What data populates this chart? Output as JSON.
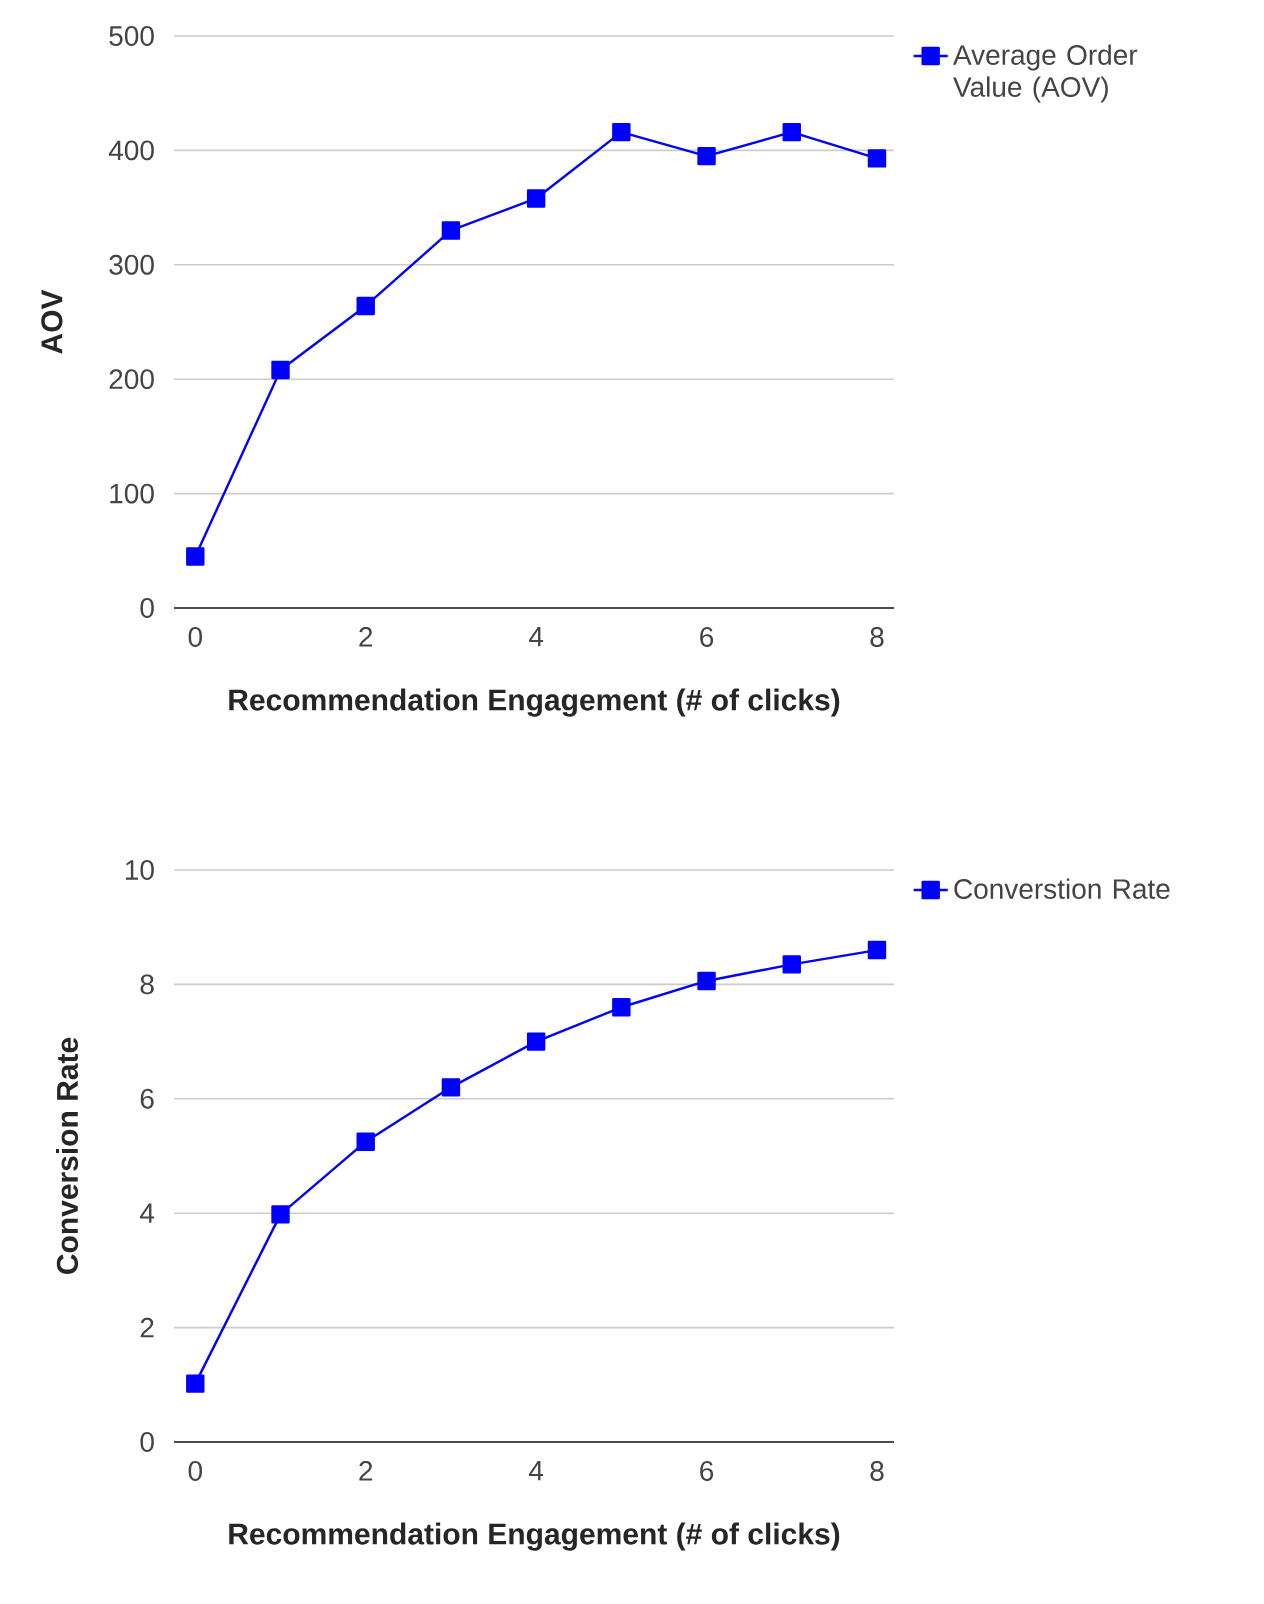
{
  "chart_data": [
    {
      "type": "line",
      "xlabel": "Recommendation Engagement (# of clicks)",
      "ylabel": "AOV",
      "x": [
        0,
        1,
        2,
        3,
        4,
        5,
        6,
        7,
        8
      ],
      "xlim": [
        -0.25,
        8.2
      ],
      "ylim": [
        0,
        500
      ],
      "xticks": [
        0,
        2,
        4,
        6,
        8
      ],
      "yticks": [
        0,
        100,
        200,
        300,
        400,
        500
      ],
      "grid": "y",
      "legend": "top right",
      "marker": "square",
      "line_style": "solid",
      "series": [
        {
          "name": "Average Order Value (AOV)",
          "color": "#0000ff",
          "values": [
            45,
            208,
            264,
            330,
            358,
            416,
            395,
            416,
            393
          ]
        }
      ]
    },
    {
      "type": "line",
      "xlabel": "Recommendation Engagement (# of clicks)",
      "ylabel": "Conversion Rate",
      "x": [
        0,
        1,
        2,
        3,
        4,
        5,
        6,
        7,
        8
      ],
      "xlim": [
        -0.25,
        8.2
      ],
      "ylim": [
        0,
        10
      ],
      "xticks": [
        0,
        2,
        4,
        6,
        8
      ],
      "yticks": [
        0,
        2,
        4,
        6,
        8,
        10
      ],
      "grid": "y",
      "legend": "top right",
      "marker": "square",
      "line_style": "solid",
      "series": [
        {
          "name": "Converstion Rate",
          "color": "#0000ff",
          "values": [
            1.02,
            3.98,
            5.25,
            6.2,
            7.0,
            7.6,
            8.06,
            8.35,
            8.6
          ]
        }
      ]
    }
  ]
}
